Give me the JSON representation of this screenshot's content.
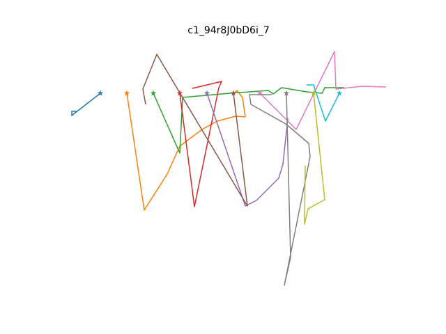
{
  "chart_data": {
    "type": "line",
    "title": "c1_94r8J0bD6i_7",
    "xlim": [
      80,
      576
    ],
    "ylim": [
      58,
      422
    ],
    "marker": "star",
    "series": [
      {
        "color": "#1f77b4",
        "x": [
          144,
          103,
          103,
          110
        ],
        "values": [
          346,
          314,
          320,
          320
        ]
      },
      {
        "color": "#ff7f0e",
        "x": [
          182,
          207,
          240,
          258,
          290,
          312,
          338,
          352,
          348,
          340,
          336
        ],
        "values": [
          346,
          178,
          230,
          270,
          294,
          306,
          313,
          312,
          340,
          350,
          346
        ]
      },
      {
        "color": "#2ca02c",
        "x": [
          220,
          258,
          262,
          330,
          385,
          392,
          404,
          440,
          462,
          466,
          494
        ],
        "values": [
          346,
          260,
          340,
          346,
          350,
          345,
          354,
          348,
          346,
          354,
          354
        ]
      },
      {
        "color": "#d62728",
        "x": [
          258,
          279,
          314,
          318,
          276
        ],
        "values": [
          346,
          183,
          354,
          363,
          353
        ]
      },
      {
        "color": "#9467bd",
        "x": [
          297,
          352,
          368,
          400,
          406,
          413
        ],
        "values": [
          346,
          184,
          192,
          224,
          244,
          310
        ]
      },
      {
        "color": "#8c564b",
        "x": [
          335,
          355,
          225,
          205,
          209
        ],
        "values": [
          346,
          184,
          402,
          352,
          330
        ]
      },
      {
        "color": "#e377c2",
        "x": [
          373,
          425,
          480,
          482,
          520,
          554
        ],
        "values": [
          346,
          294,
          406,
          352,
          356,
          355
        ]
      },
      {
        "color": "#7f7f7f",
        "x": [
          411,
          417,
          408,
          445,
          443,
          410,
          360,
          358,
          390
        ],
        "values": [
          346,
          110,
          70,
          255,
          274,
          302,
          330,
          344,
          344
        ]
      },
      {
        "color": "#bcbd22",
        "x": [
          450,
          466,
          442,
          437,
          438
        ],
        "values": [
          346,
          193,
          180,
          158,
          242
        ]
      },
      {
        "color": "#17becf",
        "x": [
          487,
          467,
          450,
          440
        ],
        "values": [
          346,
          306,
          358,
          358
        ]
      }
    ]
  }
}
